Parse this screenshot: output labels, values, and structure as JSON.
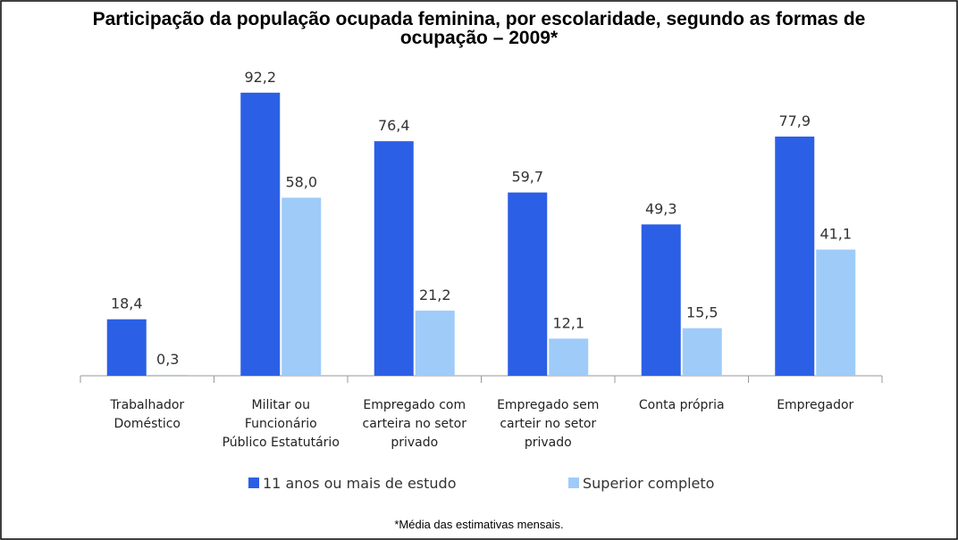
{
  "chart_data": {
    "type": "bar",
    "title": "Participação da população ocupada feminina, por escolaridade, segundo as formas de\nocupação – 2009*",
    "categories": [
      "Trabalhador\nDoméstico",
      "Militar ou\nFuncionário\nPúblico Estatutário",
      "Empregado com\ncarteira no setor\nprivado",
      "Empregado sem\ncarteir no setor\nprivado",
      "Conta própria",
      "Empregador"
    ],
    "series": [
      {
        "name": "11 anos ou mais de estudo",
        "color": "#2b5fe6",
        "values": [
          18.4,
          92.2,
          76.4,
          59.7,
          49.3,
          77.9
        ],
        "value_labels": [
          "18,4",
          "92,2",
          "76,4",
          "59,7",
          "49,3",
          "77,9"
        ]
      },
      {
        "name": "Superior completo",
        "color": "#9fcbf9",
        "values": [
          0.3,
          58.0,
          21.2,
          12.1,
          15.5,
          41.1
        ],
        "value_labels": [
          "0,3",
          "58,0",
          "21,2",
          "12,1",
          "15,5",
          "41,1"
        ]
      }
    ],
    "ylim": [
      0,
      100
    ],
    "footnote": "*Média das estimativas mensais."
  }
}
